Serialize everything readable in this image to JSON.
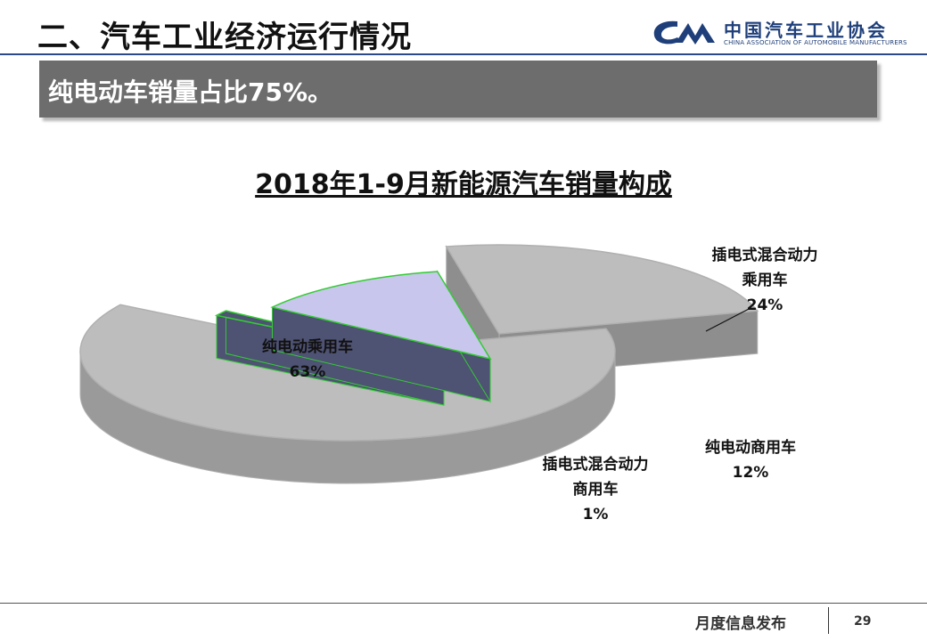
{
  "header": {
    "title": "二、汽车工业经济运行情况",
    "logo_name": "中国汽车工业协会",
    "logo_sub": "CHINA ASSOCIATION OF AUTOMOBILE MANUFACTURERS"
  },
  "banner": {
    "text": "纯电动车销量占比75%。"
  },
  "footer": {
    "brand": "月度信息发布",
    "page": "29"
  },
  "colors": {
    "banner": "#6d6d6d",
    "slice_gray": "#bdbdbd",
    "slice_navy": "#4e5273",
    "slice_lavender": "#c8c6ec",
    "slice_edge_green": "#33cc33"
  },
  "chart_data": {
    "type": "pie",
    "title": "2018年1-9月新能源汽车销量构成",
    "slices": [
      {
        "name": "插电式混合动力乘用车",
        "label_lines": [
          "插电式混合动力",
          "乘用车",
          "24%"
        ],
        "value": 24
      },
      {
        "name": "纯电动商用车",
        "label_lines": [
          "纯电动商用车",
          "12%"
        ],
        "value": 12
      },
      {
        "name": "插电式混合动力商用车",
        "label_lines": [
          "插电式混合动力",
          "商用车",
          "1%"
        ],
        "value": 1
      },
      {
        "name": "纯电动乘用车",
        "label_lines": [
          "纯电动乘用车",
          "63%"
        ],
        "value": 63
      }
    ]
  }
}
